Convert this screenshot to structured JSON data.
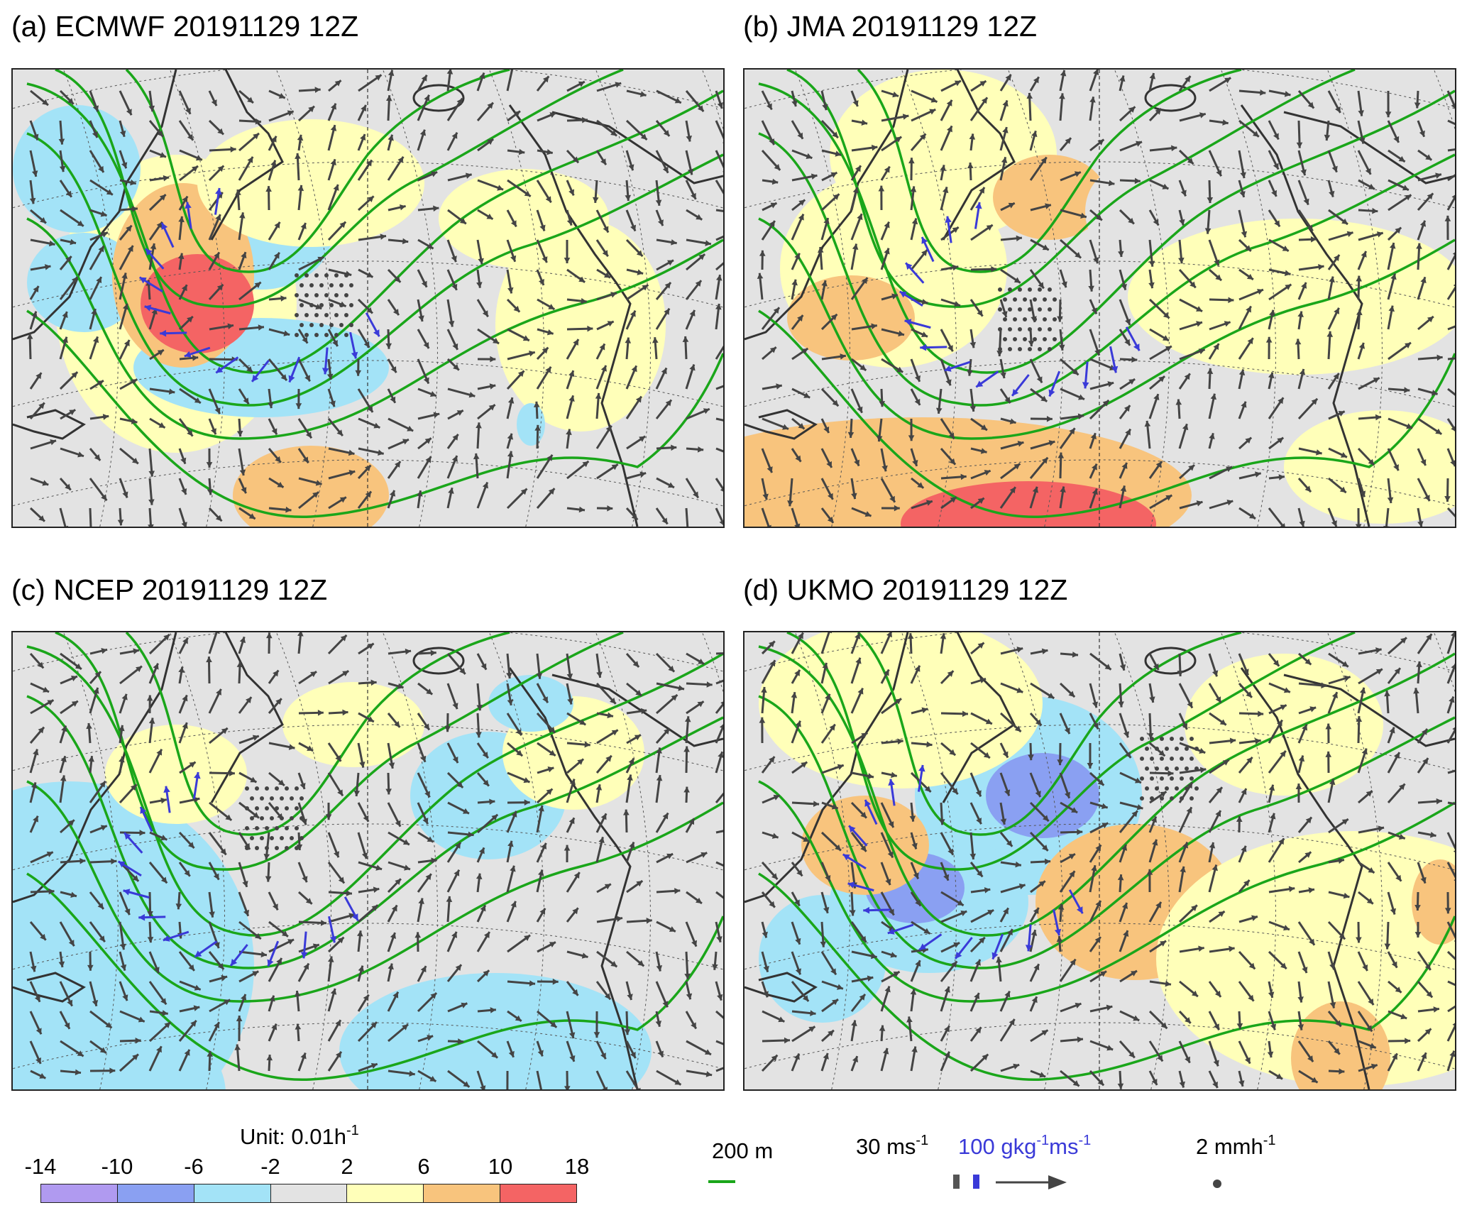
{
  "panels": [
    {
      "title": "(a) ECMWF 20191129 12Z",
      "model": "ECMWF"
    },
    {
      "title": "(b) JMA 20191129 12Z",
      "model": "JMA"
    },
    {
      "title": "(c) NCEP 20191129 12Z",
      "model": "NCEP"
    },
    {
      "title": "(d) UKMO 20191129 12Z",
      "model": "UKMO"
    }
  ],
  "colorbar": {
    "unit_label": "Unit: 0.01h",
    "unit_sup": "-1",
    "ticks": [
      "-14",
      "-10",
      "-6",
      "-2",
      "2",
      "6",
      "10",
      "18"
    ],
    "colors": [
      "#b09af0",
      "#8aa0f2",
      "#a3e3f7",
      "#e3e3e3",
      "#ffffb9",
      "#f8c47d",
      "#f46464"
    ]
  },
  "legend": {
    "contour_label": "200 m",
    "contour_color": "#1aa61a",
    "wind_label": "30 ms",
    "wind_sup": "-1",
    "flux_label": "100 gkg",
    "flux_sup1": "-1",
    "flux_label2": "ms",
    "flux_sup2": "-1",
    "flux_color": "#3a3ad8",
    "wind_color": "#444444",
    "precip_label": "2 mmh",
    "precip_sup": "-1"
  }
}
